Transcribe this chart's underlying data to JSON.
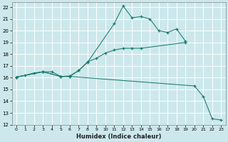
{
  "xlabel": "Humidex (Indice chaleur)",
  "bg_color": "#cce8ec",
  "grid_color": "#ffffff",
  "line_color": "#1a7a6e",
  "xlim": [
    -0.5,
    23.5
  ],
  "ylim": [
    12,
    22.4
  ],
  "xticks": [
    0,
    1,
    2,
    3,
    4,
    5,
    6,
    7,
    8,
    9,
    10,
    11,
    12,
    13,
    14,
    15,
    16,
    17,
    18,
    19,
    20,
    21,
    22,
    23
  ],
  "yticks": [
    12,
    13,
    14,
    15,
    16,
    17,
    18,
    19,
    20,
    21,
    22
  ],
  "line1_x": [
    0,
    1,
    2,
    3,
    4,
    5,
    6,
    7,
    8,
    9,
    10,
    11,
    12,
    13,
    14,
    19
  ],
  "line1_y": [
    16.05,
    16.2,
    16.4,
    16.5,
    16.5,
    16.1,
    16.1,
    16.6,
    17.35,
    17.65,
    18.1,
    18.35,
    18.5,
    18.5,
    18.5,
    19.0
  ],
  "line2_x": [
    0,
    3,
    5,
    6,
    7,
    8,
    11,
    12,
    13,
    14,
    15,
    16,
    17,
    18,
    19
  ],
  "line2_y": [
    16.05,
    16.5,
    16.1,
    16.15,
    16.6,
    17.3,
    20.6,
    22.1,
    21.1,
    21.2,
    21.0,
    20.0,
    19.85,
    20.15,
    19.1
  ],
  "line3_x": [
    0,
    3,
    5,
    6,
    20,
    21,
    22,
    23
  ],
  "line3_y": [
    16.05,
    16.5,
    16.1,
    16.1,
    15.3,
    14.4,
    12.5,
    12.4
  ]
}
